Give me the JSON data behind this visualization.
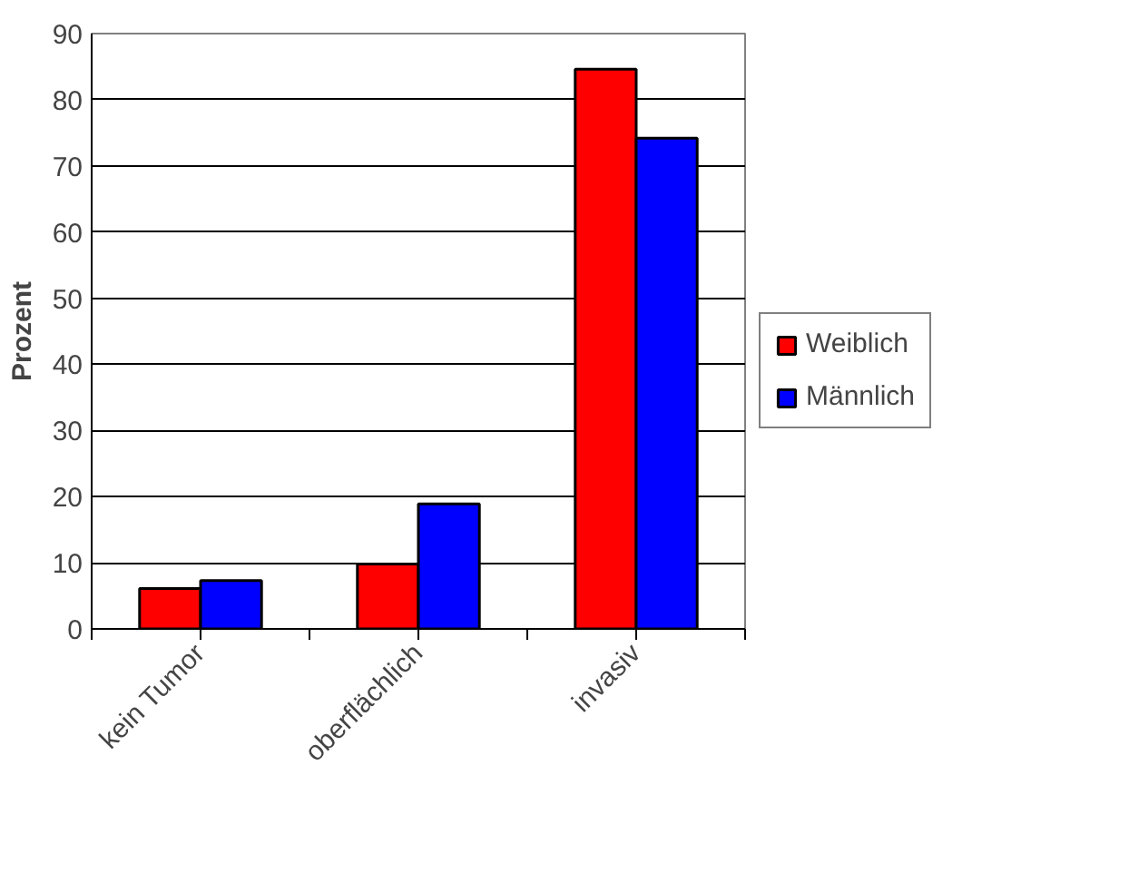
{
  "chart_data": {
    "type": "bar",
    "ylabel": "Prozent",
    "categories": [
      "kein Tumor",
      "oberflächlich",
      "invasiv"
    ],
    "series": [
      {
        "name": "Weiblich",
        "color": "#ff0000",
        "values": [
          6.1,
          9.8,
          84.6
        ]
      },
      {
        "name": "Männlich",
        "color": "#0000ff",
        "values": [
          7.3,
          18.9,
          74.2
        ]
      }
    ],
    "ylim": [
      0,
      90
    ],
    "yticks": [
      0,
      10,
      20,
      30,
      40,
      50,
      60,
      70,
      80,
      90
    ],
    "grid": "y",
    "legend": "right"
  }
}
